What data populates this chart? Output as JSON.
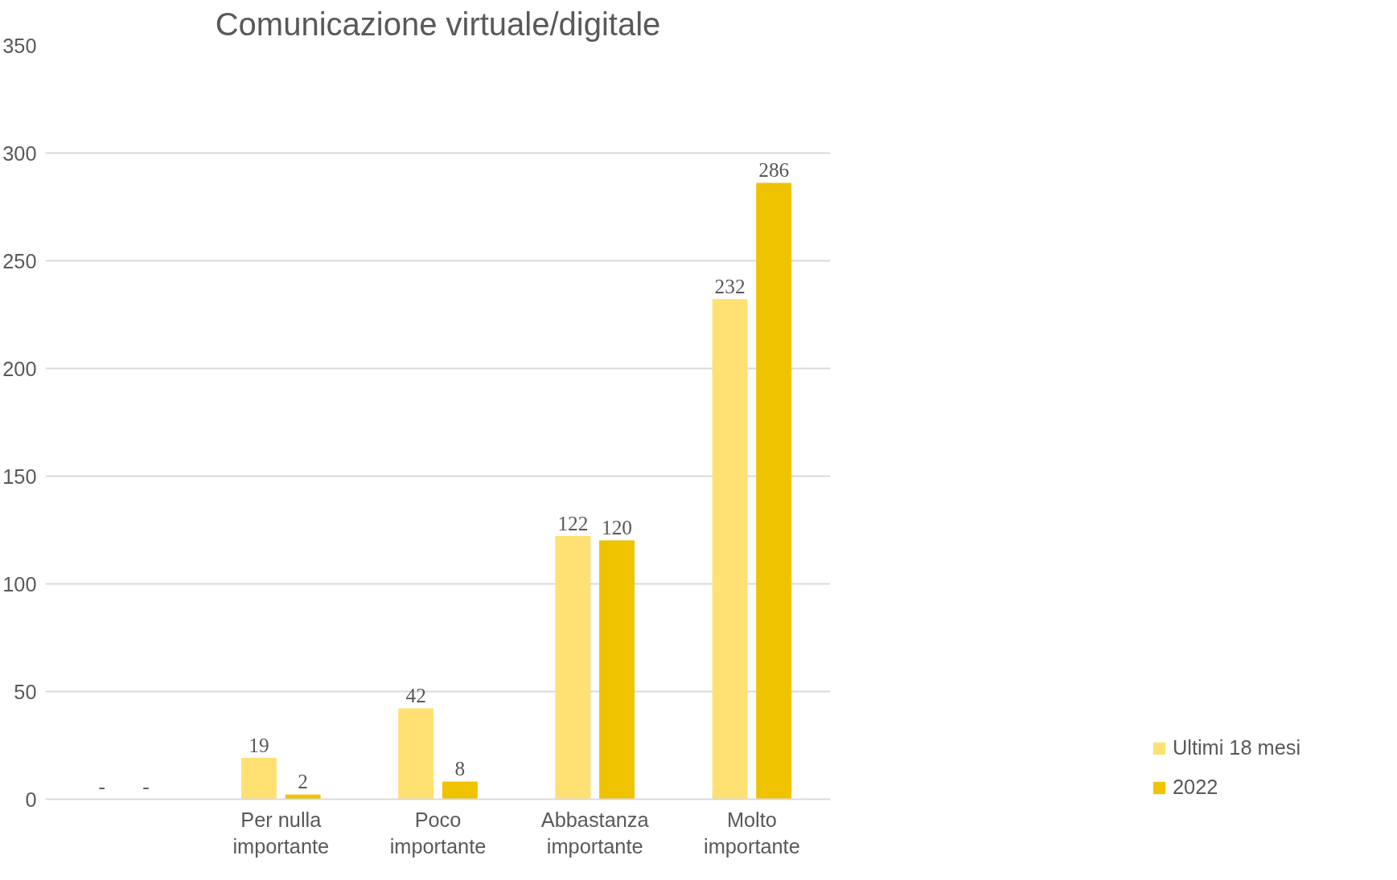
{
  "chart_data": {
    "type": "bar",
    "title": "Comunicazione virtuale/digitale",
    "categories": [
      null,
      "Per nulla importante",
      "Poco importante",
      "Abbastanza importante",
      "Molto importante"
    ],
    "series": [
      {
        "name": "Ultimi 18 mesi",
        "color": "#ffe073",
        "values": [
          0,
          19,
          42,
          122,
          232
        ],
        "value_labels": [
          "-",
          "19",
          "42",
          "122",
          "232"
        ]
      },
      {
        "name": "2022",
        "color": "#efc300",
        "values": [
          0,
          2,
          8,
          120,
          286
        ],
        "value_labels": [
          "-",
          "2",
          "8",
          "120",
          "286"
        ]
      }
    ],
    "ylim": [
      0,
      350
    ],
    "yticks": [
      0,
      50,
      100,
      150,
      200,
      250,
      300,
      350
    ],
    "grid": "y",
    "legend": "right"
  }
}
